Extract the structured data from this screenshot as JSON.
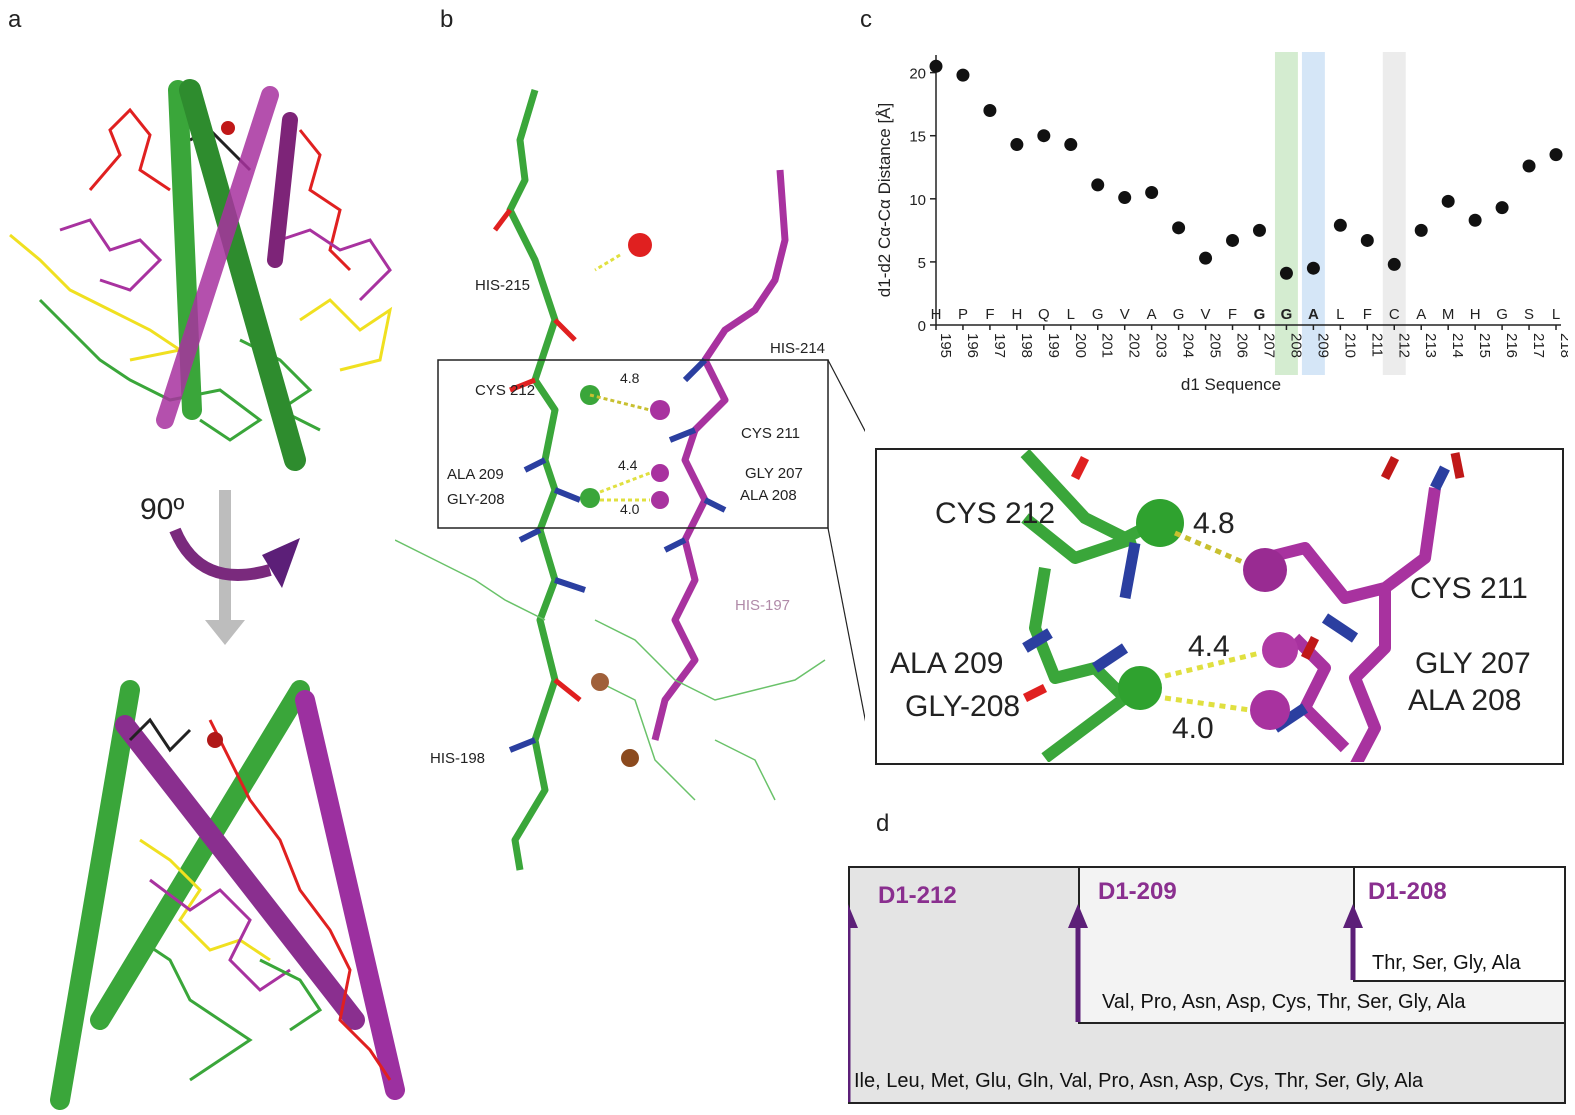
{
  "panel_labels": {
    "a": "a",
    "b": "b",
    "c": "c",
    "d": "d"
  },
  "panel_a": {
    "rotation_label": "90º"
  },
  "panel_b": {
    "residue_labels": [
      "HIS-215",
      "HIS-214",
      "CYS 212",
      "CYS 211",
      "ALA 209",
      "GLY 207",
      "GLY-208",
      "ALA 208",
      "HIS-197",
      "HIS-198"
    ],
    "distances": [
      "4.8",
      "4.4",
      "4.0"
    ]
  },
  "panel_zoom": {
    "residue_labels": [
      "CYS 212",
      "CYS 211",
      "ALA 209",
      "GLY 207",
      "GLY-208",
      "ALA 208"
    ],
    "distances": [
      "4.8",
      "4.4",
      "4.0"
    ]
  },
  "colors": {
    "green": "#3aa63a",
    "magenta": "#a8329f",
    "red": "#e02020",
    "yellow": "#f0e020",
    "blue": "#2b3fa0",
    "purple_text": "#8a2f8f",
    "arrow_purple": "#5c1f78",
    "grey_arrow": "#bdbdbd"
  },
  "chart_data": {
    "type": "scatter",
    "xlabel": "d1 Sequence",
    "ylabel": "d1-d2 Cα-Cα Distance [Å]",
    "ylim": [
      0,
      21
    ],
    "yticks": [
      "0",
      "5",
      "10",
      "15",
      "20"
    ],
    "categories": [
      "195",
      "196",
      "197",
      "198",
      "199",
      "200",
      "201",
      "202",
      "203",
      "204",
      "205",
      "206",
      "207",
      "208",
      "209",
      "210",
      "211",
      "212",
      "213",
      "214",
      "215",
      "216",
      "217",
      "218"
    ],
    "residues": [
      "H",
      "P",
      "F",
      "H",
      "Q",
      "L",
      "G",
      "V",
      "A",
      "G",
      "V",
      "F",
      "G",
      "G",
      "A",
      "L",
      "F",
      "C",
      "A",
      "M",
      "H",
      "G",
      "S",
      "L"
    ],
    "values": [
      20.5,
      19.8,
      17.0,
      14.3,
      15.0,
      14.3,
      11.1,
      10.1,
      10.5,
      7.7,
      5.3,
      6.7,
      7.5,
      4.1,
      4.5,
      7.9,
      6.7,
      4.8,
      7.5,
      9.8,
      8.3,
      9.3,
      12.6,
      13.5
    ],
    "highlights": [
      {
        "index": 13,
        "color": "#d4ecd0"
      },
      {
        "index": 14,
        "color": "#d5e6f7"
      },
      {
        "index": 17,
        "color": "#ececec"
      }
    ]
  },
  "panel_d": {
    "boxes": [
      {
        "title": "D1-212",
        "list": "Ile, Leu, Met, Glu, Gln, Val, Pro, Asn, Asp, Cys, Thr, Ser, Gly, Ala"
      },
      {
        "title": "D1-209",
        "list": "Val, Pro, Asn, Asp, Cys, Thr, Ser, Gly, Ala"
      },
      {
        "title": "D1-208",
        "list": "Thr, Ser, Gly, Ala"
      }
    ]
  }
}
